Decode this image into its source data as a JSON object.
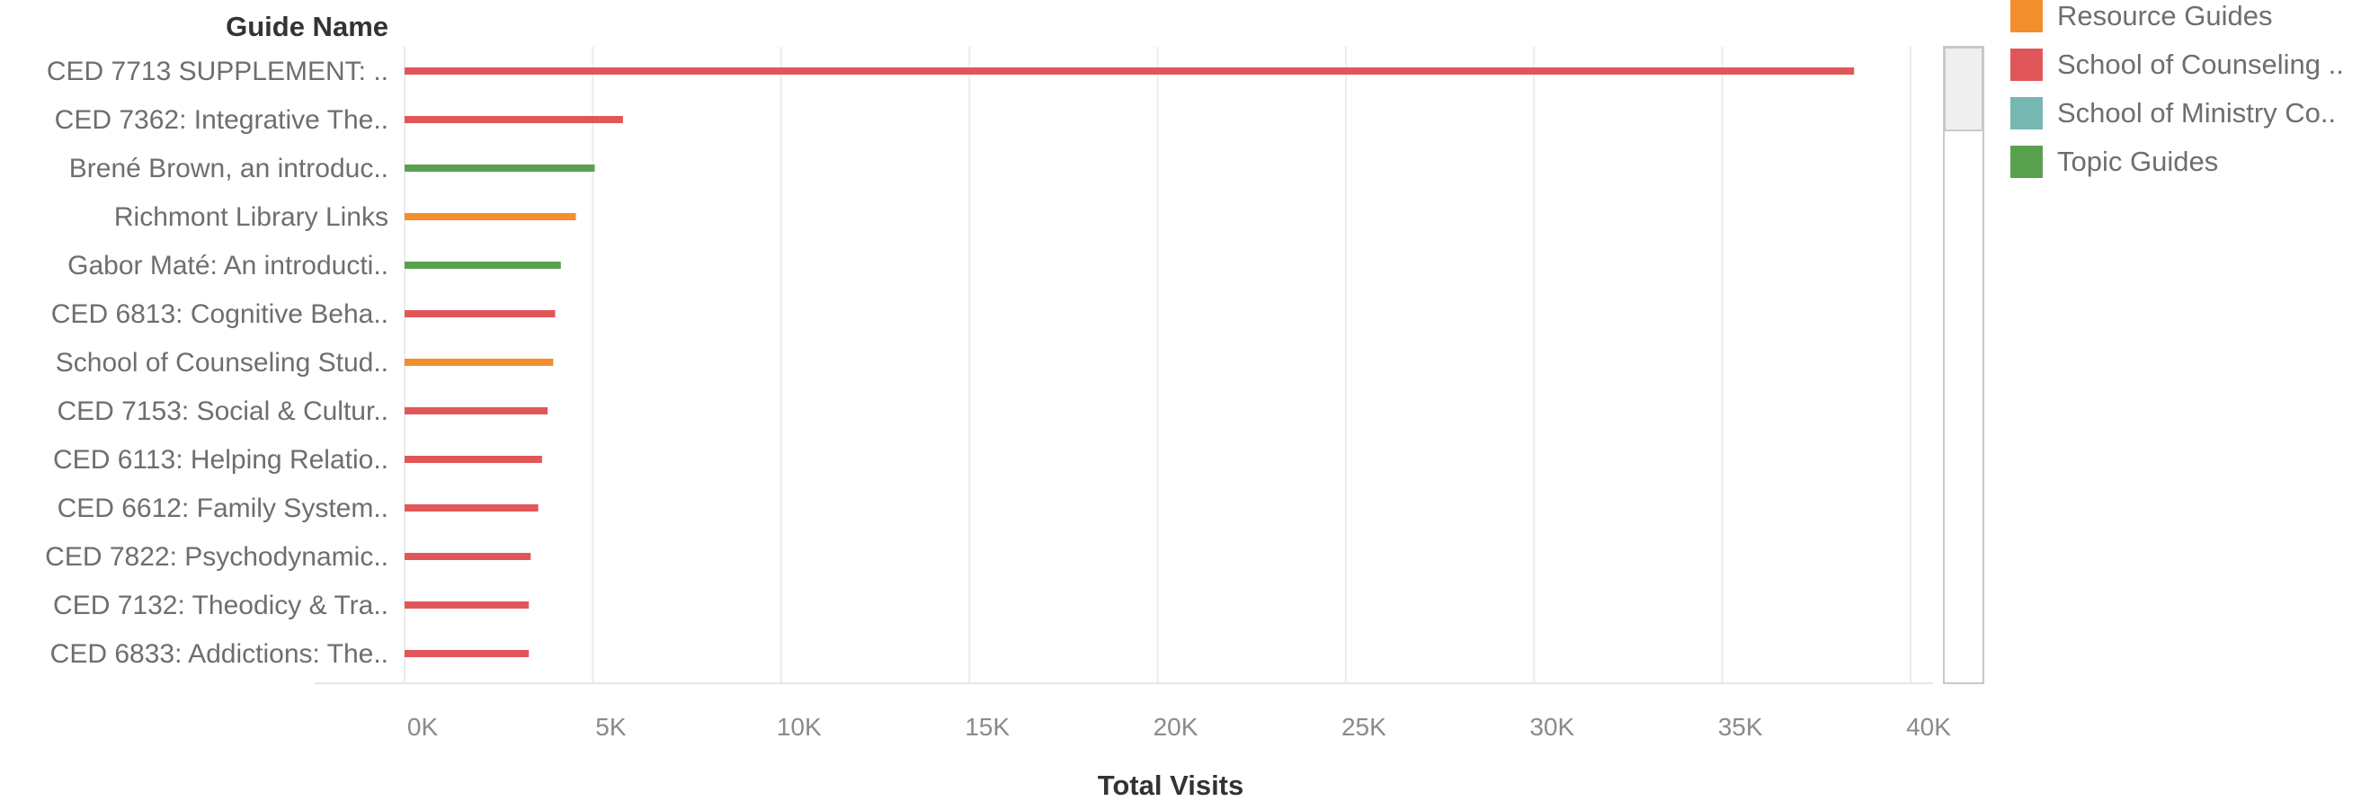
{
  "chart_data": {
    "type": "bar",
    "orientation": "horizontal",
    "row_header": "Guide Name",
    "xlabel": "Total Visits",
    "xlim": [
      0,
      40000
    ],
    "x_ticks": [
      0,
      5000,
      10000,
      15000,
      20000,
      25000,
      30000,
      35000,
      40000
    ],
    "x_tick_labels": [
      "0K",
      "5K",
      "10K",
      "15K",
      "20K",
      "25K",
      "30K",
      "35K",
      "40K"
    ],
    "grid": "vertical",
    "legend_position": "top-right",
    "legend": [
      {
        "name": "Resource Guides",
        "color": "#F28E2B"
      },
      {
        "name": "School of Counseling ..",
        "color": "#E15759"
      },
      {
        "name": "School of Ministry Co..",
        "color": "#76B7B2"
      },
      {
        "name": "Topic Guides",
        "color": "#59A14F"
      }
    ],
    "bars": [
      {
        "label": "CED 7713 SUPPLEMENT: ..",
        "value": 38500,
        "group": "School of Counseling ..",
        "color": "#E15759"
      },
      {
        "label": "CED 7362: Integrative The..",
        "value": 5800,
        "group": "School of Counseling ..",
        "color": "#E15759"
      },
      {
        "label": "Brené Brown, an introduc..",
        "value": 5050,
        "group": "Topic Guides",
        "color": "#59A14F"
      },
      {
        "label": "Richmont Library Links",
        "value": 4550,
        "group": "Resource Guides",
        "color": "#F28E2B"
      },
      {
        "label": "Gabor Maté: An introducti..",
        "value": 4150,
        "group": "Topic Guides",
        "color": "#59A14F"
      },
      {
        "label": "CED 6813: Cognitive Beha..",
        "value": 4000,
        "group": "School of Counseling ..",
        "color": "#E15759"
      },
      {
        "label": "School of Counseling Stud..",
        "value": 3950,
        "group": "Resource Guides",
        "color": "#F28E2B"
      },
      {
        "label": "CED 7153: Social & Cultur..",
        "value": 3800,
        "group": "School of Counseling ..",
        "color": "#E15759"
      },
      {
        "label": "CED 6113: Helping Relatio..",
        "value": 3650,
        "group": "School of Counseling ..",
        "color": "#E15759"
      },
      {
        "label": "CED 6612: Family System..",
        "value": 3550,
        "group": "School of Counseling ..",
        "color": "#E15759"
      },
      {
        "label": "CED 7822: Psychodynamic..",
        "value": 3350,
        "group": "School of Counseling ..",
        "color": "#E15759"
      },
      {
        "label": "CED 7132: Theodicy & Tra..",
        "value": 3300,
        "group": "School of Counseling ..",
        "color": "#E15759"
      },
      {
        "label": "CED 6833: Addictions: The..",
        "value": 3300,
        "group": "School of Counseling ..",
        "color": "#E15759"
      }
    ],
    "scroll_position": 0.13
  }
}
